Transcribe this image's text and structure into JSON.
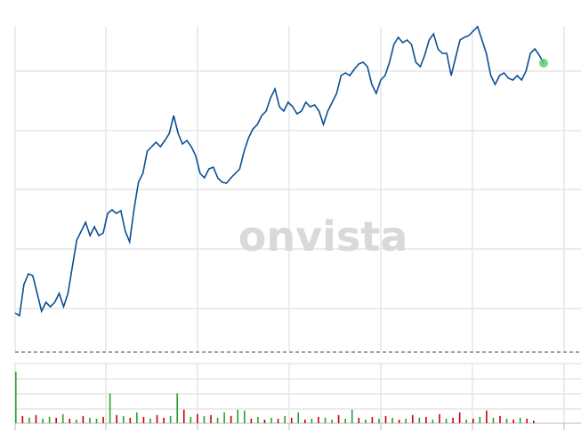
{
  "watermark": "onvista",
  "chart_data": [
    {
      "type": "line",
      "color": "#0b4f94",
      "ylim": [
        0,
        365
      ],
      "values": [
        43,
        40,
        75,
        87,
        85,
        65,
        45,
        55,
        50,
        55,
        65,
        50,
        65,
        95,
        125,
        135,
        145,
        130,
        140,
        130,
        133,
        155,
        159,
        155,
        158,
        135,
        123,
        160,
        190,
        200,
        225,
        230,
        235,
        230,
        237,
        245,
        265,
        245,
        233,
        237,
        230,
        220,
        200,
        195,
        205,
        207,
        195,
        190,
        189,
        195,
        200,
        205,
        225,
        240,
        250,
        255,
        265,
        270,
        285,
        295,
        275,
        270,
        280,
        275,
        267,
        270,
        280,
        275,
        277,
        270,
        255,
        270,
        280,
        290,
        310,
        313,
        310,
        317,
        323,
        325,
        320,
        300,
        290,
        305,
        310,
        325,
        345,
        353,
        347,
        350,
        345,
        325,
        320,
        333,
        350,
        357,
        340,
        335,
        335,
        310,
        330,
        350,
        353,
        355,
        360,
        365,
        350,
        335,
        310,
        300,
        310,
        313,
        307,
        305,
        310,
        305,
        315,
        335,
        340,
        333,
        324
      ],
      "marker_color": "#55cc66"
    },
    {
      "type": "bar",
      "ylim": [
        0,
        60
      ],
      "values": [
        57,
        8,
        6,
        9,
        5,
        7,
        6,
        10,
        5,
        4,
        8,
        6,
        5,
        7,
        33,
        9,
        8,
        6,
        12,
        7,
        5,
        9,
        6,
        8,
        33,
        15,
        7,
        10,
        8,
        9,
        6,
        12,
        8,
        15,
        14,
        5,
        7,
        4,
        6,
        5,
        8,
        6,
        12,
        4,
        5,
        7,
        6,
        4,
        9,
        5,
        15,
        6,
        4,
        7,
        5,
        8,
        6,
        4,
        5,
        9,
        6,
        7,
        4,
        10,
        5,
        6,
        12,
        4,
        5,
        7,
        14,
        6,
        8,
        5,
        4,
        6,
        5,
        3
      ],
      "colors": [
        "#2ca02c",
        "#cc0000",
        "#2ca02c",
        "#cc0000",
        "#2ca02c",
        "#2ca02c",
        "#cc0000",
        "#2ca02c",
        "#cc0000",
        "#2ca02c",
        "#cc0000",
        "#2ca02c",
        "#2ca02c",
        "#cc0000",
        "#2ca02c",
        "#cc0000",
        "#2ca02c",
        "#cc0000",
        "#2ca02c",
        "#cc0000",
        "#2ca02c",
        "#cc0000",
        "#cc0000",
        "#2ca02c",
        "#2ca02c",
        "#cc0000",
        "#2ca02c",
        "#cc0000",
        "#2ca02c",
        "#cc0000",
        "#2ca02c",
        "#2ca02c",
        "#cc0000",
        "#2ca02c",
        "#2ca02c",
        "#cc0000",
        "#2ca02c",
        "#cc0000",
        "#2ca02c",
        "#cc0000",
        "#2ca02c",
        "#cc0000",
        "#2ca02c",
        "#cc0000",
        "#2ca02c",
        "#cc0000",
        "#2ca02c",
        "#2ca02c",
        "#cc0000",
        "#2ca02c",
        "#2ca02c",
        "#cc0000",
        "#2ca02c",
        "#cc0000",
        "#2ca02c",
        "#cc0000",
        "#2ca02c",
        "#cc0000",
        "#2ca02c",
        "#cc0000",
        "#2ca02c",
        "#cc0000",
        "#2ca02c",
        "#cc0000",
        "#2ca02c",
        "#cc0000",
        "#cc0000",
        "#2ca02c",
        "#cc0000",
        "#2ca02c",
        "#cc0000",
        "#2ca02c",
        "#cc0000",
        "#2ca02c",
        "#cc0000",
        "#2ca02c",
        "#cc0000",
        "#cc0000"
      ]
    }
  ]
}
